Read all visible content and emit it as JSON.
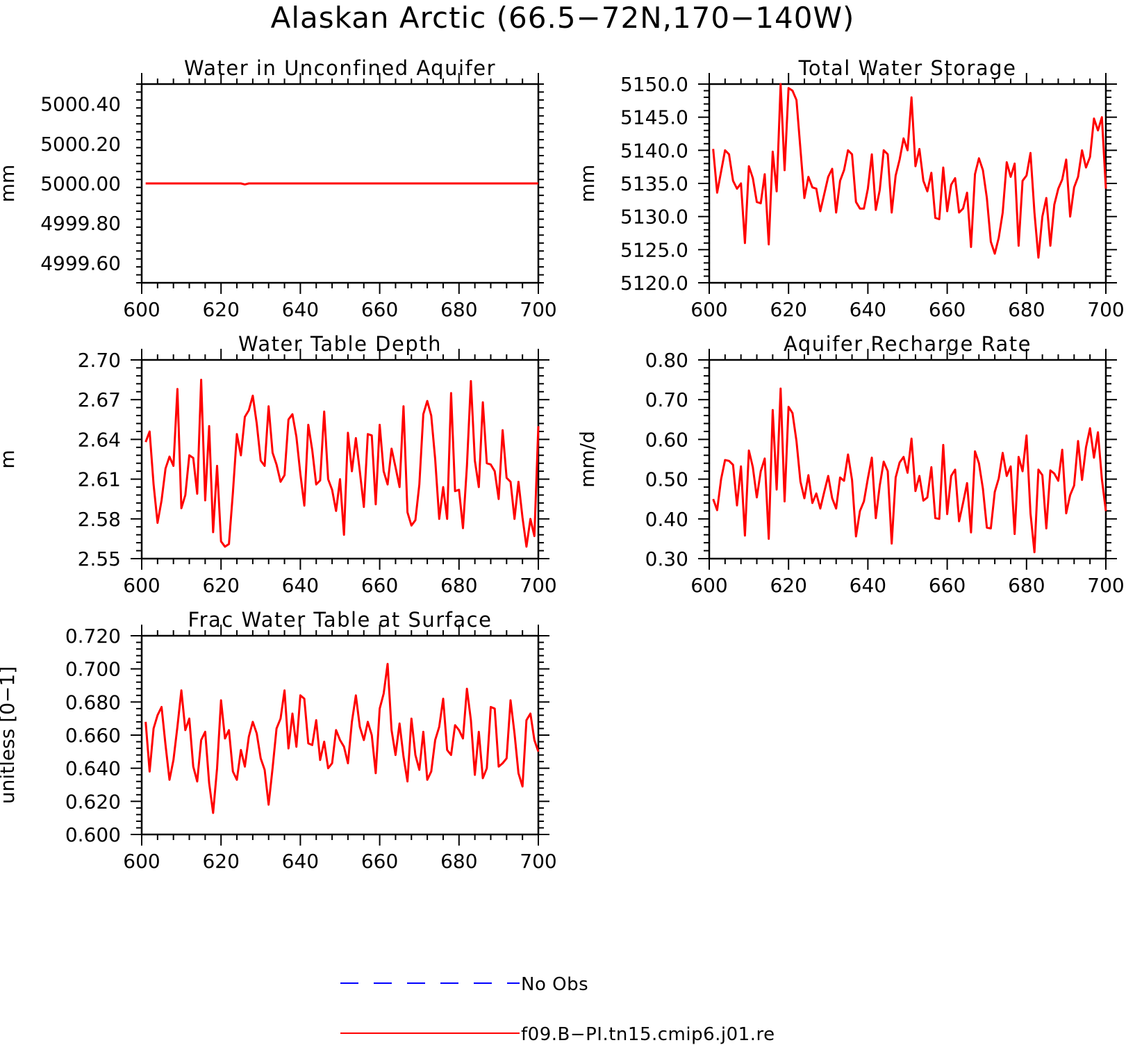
{
  "page": {
    "title": "Alaskan Arctic (66.5−72N,170−140W)"
  },
  "colors": {
    "model_line": "#ff0000",
    "obs_line": "#0000ff",
    "axes": "#000000"
  },
  "legend": {
    "entries": [
      {
        "label": "No Obs",
        "style": "dashed",
        "color": "#0000ff"
      },
      {
        "label": "f09.B−PI.tn15.cmip6.j01.re",
        "style": "solid",
        "color": "#ff0000"
      }
    ]
  },
  "chart_data": [
    {
      "id": "unconfined-aquifer",
      "type": "line",
      "title": "Water in Unconfined Aquifer",
      "xlabel": "",
      "ylabel": "mm",
      "xlim": [
        600,
        700
      ],
      "ylim": [
        4999.5,
        5000.5
      ],
      "xticks": [
        600,
        620,
        640,
        660,
        680,
        700
      ],
      "yticks": [
        4999.6,
        4999.8,
        5000.0,
        5000.2,
        5000.4
      ],
      "ytick_labels": [
        "4999.60",
        "4999.80",
        "5000.00",
        "5000.20",
        "5000.40"
      ],
      "x_start": 601,
      "series": [
        {
          "name": "f09.B−PI.tn15.cmip6.j01.re",
          "values": [
            5000.0,
            5000.0,
            5000.0,
            5000.0,
            5000.0,
            5000.0,
            5000.0,
            5000.0,
            5000.0,
            5000.0,
            5000.0,
            5000.0,
            5000.0,
            5000.0,
            5000.0,
            5000.0,
            5000.0,
            5000.0,
            5000.0,
            5000.0,
            5000.0,
            5000.0,
            5000.0,
            5000.0,
            5000.0,
            4999.995,
            5000.0,
            5000.0,
            5000.0,
            5000.0,
            5000.0,
            5000.0,
            5000.0,
            5000.0,
            5000.0,
            5000.0,
            5000.0,
            5000.0,
            5000.0,
            5000.0,
            5000.0,
            5000.0,
            5000.0,
            5000.0,
            5000.0,
            5000.0,
            5000.0,
            5000.0,
            5000.0,
            5000.0,
            5000.0,
            5000.0,
            5000.0,
            5000.0,
            5000.0,
            5000.0,
            5000.0,
            5000.0,
            5000.0,
            5000.0,
            5000.0,
            5000.0,
            5000.0,
            5000.0,
            5000.0,
            5000.0,
            5000.0,
            5000.0,
            5000.0,
            5000.0,
            5000.0,
            5000.0,
            5000.0,
            5000.0,
            5000.0,
            5000.0,
            5000.0,
            5000.0,
            5000.0,
            5000.0,
            5000.0,
            5000.0,
            5000.0,
            5000.0,
            5000.0,
            5000.0,
            5000.0,
            5000.0,
            5000.0,
            5000.0,
            5000.0,
            5000.0,
            5000.0,
            5000.0,
            5000.0,
            5000.0,
            5000.0,
            5000.0,
            5000.0,
            5000.0
          ]
        }
      ]
    },
    {
      "id": "total-water-storage",
      "type": "line",
      "title": "Total Water Storage",
      "xlabel": "",
      "ylabel": "mm",
      "xlim": [
        600,
        700
      ],
      "ylim": [
        5120.0,
        5150.0
      ],
      "xticks": [
        600,
        620,
        640,
        660,
        680,
        700
      ],
      "yticks": [
        5120.0,
        5125.0,
        5130.0,
        5135.0,
        5140.0,
        5145.0,
        5150.0
      ],
      "ytick_labels": [
        "5120.0",
        "5125.0",
        "5130.0",
        "5135.0",
        "5140.0",
        "5145.0",
        "5150.0"
      ],
      "x_start": 601,
      "series": [
        {
          "name": "f09.B−PI.tn15.cmip6.j01.re",
          "values": [
            5140.2,
            5133.6,
            5136.8,
            5140.0,
            5139.4,
            5135.4,
            5134.2,
            5135.0,
            5126.0,
            5137.6,
            5135.8,
            5132.2,
            5132.0,
            5136.4,
            5125.8,
            5139.8,
            5133.8,
            5150.0,
            5137.0,
            5149.4,
            5149.0,
            5147.6,
            5140.2,
            5132.8,
            5136.0,
            5134.4,
            5134.2,
            5130.8,
            5133.4,
            5136.0,
            5137.2,
            5130.6,
            5135.4,
            5137.0,
            5140.0,
            5139.4,
            5132.2,
            5131.2,
            5131.2,
            5134.2,
            5139.4,
            5131.0,
            5134.0,
            5140.0,
            5139.4,
            5130.6,
            5136.2,
            5138.6,
            5141.8,
            5140.0,
            5148.0,
            5137.6,
            5140.2,
            5135.4,
            5133.8,
            5136.6,
            5129.8,
            5129.6,
            5137.4,
            5130.8,
            5134.8,
            5135.8,
            5130.6,
            5131.2,
            5133.6,
            5125.4,
            5136.4,
            5138.8,
            5137.0,
            5132.8,
            5126.2,
            5124.4,
            5126.8,
            5130.6,
            5138.2,
            5136.0,
            5138.0,
            5125.6,
            5135.4,
            5136.2,
            5139.6,
            5130.6,
            5123.8,
            5130.0,
            5132.8,
            5125.6,
            5131.8,
            5134.2,
            5135.6,
            5138.6,
            5130.0,
            5134.4,
            5136.0,
            5140.0,
            5137.4,
            5139.0,
            5144.8,
            5143.0,
            5145.0,
            5134.2
          ]
        }
      ]
    },
    {
      "id": "water-table-depth",
      "type": "line",
      "title": "Water Table Depth",
      "xlabel": "",
      "ylabel": "m",
      "xlim": [
        600,
        700
      ],
      "ylim": [
        2.55,
        2.7
      ],
      "xticks": [
        600,
        620,
        640,
        660,
        680,
        700
      ],
      "yticks": [
        2.55,
        2.58,
        2.61,
        2.64,
        2.67,
        2.7
      ],
      "ytick_labels": [
        "2.55",
        "2.58",
        "2.61",
        "2.64",
        "2.67",
        "2.70"
      ],
      "x_start": 601,
      "series": [
        {
          "name": "f09.B−PI.tn15.cmip6.j01.re",
          "values": [
            2.638,
            2.646,
            2.606,
            2.577,
            2.594,
            2.618,
            2.627,
            2.62,
            2.678,
            2.588,
            2.598,
            2.628,
            2.626,
            2.599,
            2.685,
            2.594,
            2.65,
            2.57,
            2.62,
            2.563,
            2.559,
            2.561,
            2.6,
            2.644,
            2.628,
            2.657,
            2.662,
            2.673,
            2.652,
            2.624,
            2.62,
            2.665,
            2.63,
            2.621,
            2.608,
            2.613,
            2.655,
            2.659,
            2.642,
            2.614,
            2.59,
            2.651,
            2.632,
            2.606,
            2.609,
            2.661,
            2.61,
            2.602,
            2.586,
            2.61,
            2.568,
            2.645,
            2.616,
            2.641,
            2.616,
            2.589,
            2.644,
            2.643,
            2.591,
            2.651,
            2.616,
            2.606,
            2.633,
            2.619,
            2.604,
            2.665,
            2.585,
            2.575,
            2.579,
            2.606,
            2.659,
            2.669,
            2.658,
            2.625,
            2.58,
            2.604,
            2.58,
            2.675,
            2.601,
            2.602,
            2.573,
            2.62,
            2.684,
            2.624,
            2.604,
            2.668,
            2.622,
            2.621,
            2.616,
            2.595,
            2.647,
            2.611,
            2.608,
            2.58,
            2.608,
            2.581,
            2.559,
            2.58,
            2.567,
            2.65
          ]
        }
      ]
    },
    {
      "id": "aquifer-recharge-rate",
      "type": "line",
      "title": "Aquifer Recharge Rate",
      "xlabel": "",
      "ylabel": "mm/d",
      "xlim": [
        600,
        700
      ],
      "ylim": [
        0.3,
        0.8
      ],
      "xticks": [
        600,
        620,
        640,
        660,
        680,
        700
      ],
      "yticks": [
        0.3,
        0.4,
        0.5,
        0.6,
        0.7,
        0.8
      ],
      "ytick_labels": [
        "0.30",
        "0.40",
        "0.50",
        "0.60",
        "0.70",
        "0.80"
      ],
      "x_start": 601,
      "series": [
        {
          "name": "f09.B−PI.tn15.cmip6.j01.re",
          "values": [
            0.45,
            0.422,
            0.5,
            0.548,
            0.546,
            0.536,
            0.434,
            0.532,
            0.358,
            0.572,
            0.53,
            0.454,
            0.52,
            0.552,
            0.35,
            0.674,
            0.474,
            0.728,
            0.444,
            0.682,
            0.666,
            0.596,
            0.494,
            0.452,
            0.51,
            0.44,
            0.464,
            0.426,
            0.468,
            0.508,
            0.452,
            0.426,
            0.504,
            0.496,
            0.562,
            0.498,
            0.356,
            0.42,
            0.444,
            0.502,
            0.554,
            0.402,
            0.484,
            0.544,
            0.52,
            0.338,
            0.504,
            0.542,
            0.556,
            0.516,
            0.602,
            0.47,
            0.508,
            0.446,
            0.454,
            0.53,
            0.402,
            0.4,
            0.586,
            0.412,
            0.508,
            0.524,
            0.394,
            0.44,
            0.49,
            0.366,
            0.57,
            0.54,
            0.476,
            0.378,
            0.376,
            0.468,
            0.502,
            0.566,
            0.508,
            0.532,
            0.362,
            0.556,
            0.52,
            0.61,
            0.414,
            0.316,
            0.524,
            0.51,
            0.376,
            0.522,
            0.514,
            0.496,
            0.574,
            0.414,
            0.46,
            0.484,
            0.596,
            0.498,
            0.58,
            0.628,
            0.554,
            0.618,
            0.5,
            0.42
          ]
        }
      ]
    },
    {
      "id": "frac-water-table-surface",
      "type": "line",
      "title": "Frac Water Table at Surface",
      "xlabel": "",
      "ylabel": "unitless [0−1]",
      "xlim": [
        600,
        700
      ],
      "ylim": [
        0.6,
        0.72
      ],
      "xticks": [
        600,
        620,
        640,
        660,
        680,
        700
      ],
      "yticks": [
        0.6,
        0.62,
        0.64,
        0.66,
        0.68,
        0.7,
        0.72
      ],
      "ytick_labels": [
        "0.600",
        "0.620",
        "0.640",
        "0.660",
        "0.680",
        "0.700",
        "0.720"
      ],
      "x_start": 601,
      "series": [
        {
          "name": "f09.B−PI.tn15.cmip6.j01.re",
          "values": [
            0.668,
            0.638,
            0.664,
            0.672,
            0.677,
            0.654,
            0.633,
            0.645,
            0.665,
            0.687,
            0.663,
            0.67,
            0.641,
            0.632,
            0.657,
            0.662,
            0.631,
            0.613,
            0.64,
            0.681,
            0.658,
            0.663,
            0.638,
            0.633,
            0.651,
            0.641,
            0.659,
            0.668,
            0.661,
            0.646,
            0.639,
            0.618,
            0.64,
            0.664,
            0.67,
            0.687,
            0.652,
            0.673,
            0.653,
            0.684,
            0.682,
            0.655,
            0.654,
            0.669,
            0.645,
            0.656,
            0.64,
            0.643,
            0.663,
            0.657,
            0.653,
            0.643,
            0.668,
            0.684,
            0.665,
            0.657,
            0.668,
            0.66,
            0.637,
            0.676,
            0.685,
            0.703,
            0.663,
            0.648,
            0.667,
            0.647,
            0.632,
            0.67,
            0.648,
            0.639,
            0.662,
            0.633,
            0.638,
            0.657,
            0.665,
            0.682,
            0.651,
            0.648,
            0.666,
            0.663,
            0.658,
            0.688,
            0.669,
            0.636,
            0.662,
            0.634,
            0.64,
            0.677,
            0.676,
            0.641,
            0.643,
            0.646,
            0.681,
            0.661,
            0.637,
            0.629,
            0.669,
            0.673,
            0.657,
            0.65
          ]
        }
      ]
    }
  ]
}
